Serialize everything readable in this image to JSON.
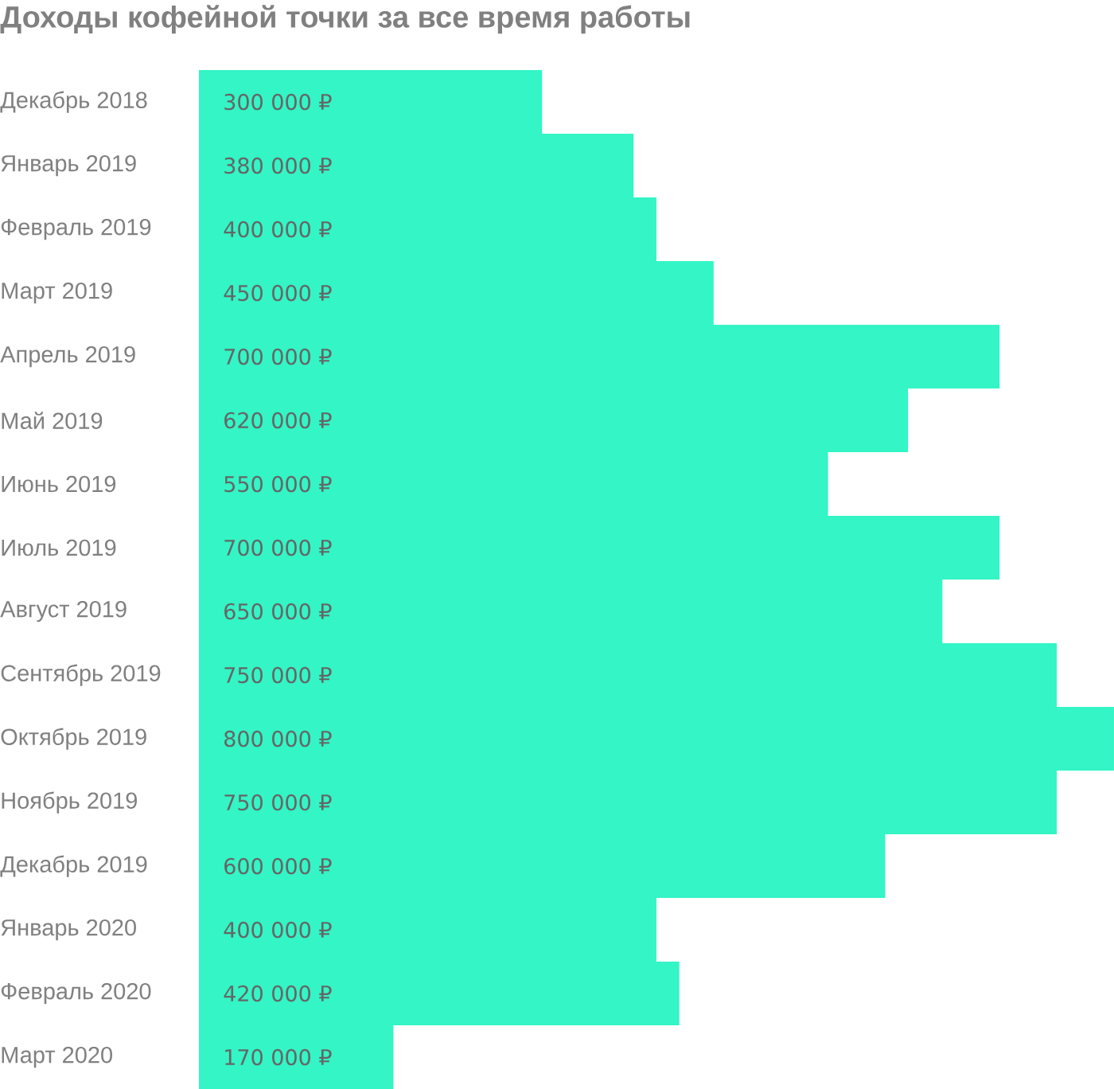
{
  "chart_data": {
    "type": "bar",
    "orientation": "horizontal",
    "title": "Доходы кофейной точки за все время работы",
    "categories": [
      "Декабрь 2018",
      "Январь 2019",
      "Февраль 2019",
      "Март 2019",
      "Апрель 2019",
      "Май 2019",
      "Июнь 2019",
      "Июль 2019",
      "Август 2019",
      "Сентябрь 2019",
      "Октябрь 2019",
      "Ноябрь 2019",
      "Декабрь 2019",
      "Январь 2020",
      "Февраль 2020",
      "Март 2020"
    ],
    "values": [
      300000,
      380000,
      400000,
      450000,
      700000,
      620000,
      550000,
      700000,
      650000,
      750000,
      800000,
      750000,
      600000,
      400000,
      420000,
      170000
    ],
    "value_labels": [
      "300 000 ₽",
      "380 000 ₽",
      "400 000 ₽",
      "450 000 ₽",
      "700 000 ₽",
      "620 000 ₽",
      "550 000 ₽",
      "700 000 ₽",
      "650 000 ₽",
      "750 000 ₽",
      "800 000 ₽",
      "750 000 ₽",
      "600 000 ₽",
      "400 000 ₽",
      "420 000 ₽",
      "170 000 ₽"
    ],
    "color": "#33f5c5"
  }
}
